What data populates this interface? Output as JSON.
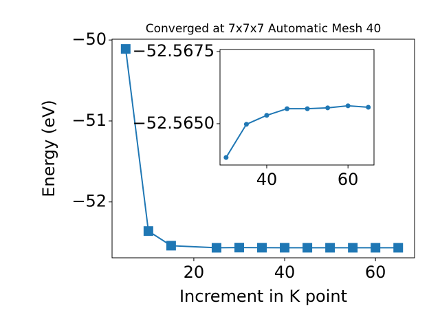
{
  "chart_data": [
    {
      "type": "line",
      "title": "Converged at 7x7x7 Automatic Mesh 40",
      "x_label": "Increment in K point",
      "y_label": "Energy (eV)",
      "x": [
        5,
        10,
        15,
        25,
        30,
        35,
        40,
        45,
        50,
        55,
        60,
        65
      ],
      "series": [
        {
          "color": "#1f77b4",
          "values": [
            -50.11,
            -52.36,
            -52.54,
            -52.566,
            -52.5638,
            -52.565,
            -52.5653,
            -52.5655,
            -52.5655,
            -52.5656,
            -52.5656,
            -52.5656
          ]
        }
      ],
      "xlim": [
        2,
        68.6
      ],
      "ylim": [
        -52.69,
        -49.99
      ],
      "xticks": [
        20,
        40,
        60
      ],
      "yticks": [
        {
          "value": -50,
          "label": "−50"
        },
        {
          "value": -51,
          "label": "−51"
        },
        {
          "value": -52,
          "label": "−52"
        }
      ]
    },
    {
      "type": "line",
      "x": [
        30,
        35,
        40,
        45,
        50,
        55,
        60,
        65
      ],
      "series": [
        {
          "color": "#1f77b4",
          "values": [
            -52.56383,
            -52.56498,
            -52.56529,
            -52.56552,
            -52.56552,
            -52.56555,
            -52.56562,
            -52.56557
          ]
        }
      ],
      "xlim": [
        28.5,
        66.4
      ],
      "ylim": [
        -52.56357,
        -52.56757
      ],
      "xticks": [
        40,
        60
      ],
      "yticks": [
        {
          "value": -52.5675,
          "label": "−52.5675"
        },
        {
          "value": -52.565,
          "label": "−52.5650"
        }
      ]
    }
  ]
}
